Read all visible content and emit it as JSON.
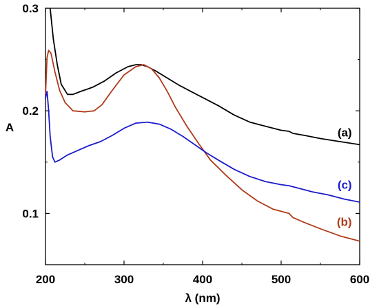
{
  "chart_data": {
    "type": "line",
    "title": "",
    "xlabel": "λ (nm)",
    "ylabel": "A",
    "xlim": [
      200,
      600
    ],
    "ylim": [
      0.05,
      0.3
    ],
    "x_ticks": [
      200,
      300,
      400,
      500,
      600
    ],
    "y_ticks": [
      0.1,
      0.2,
      0.3
    ],
    "y_tick_labels": [
      "0.1",
      "0.2",
      "0.3"
    ],
    "grid": false,
    "series": [
      {
        "name": "(a)",
        "color": "#000000",
        "points": [
          [
            206,
            0.3
          ],
          [
            210,
            0.27
          ],
          [
            215,
            0.245
          ],
          [
            220,
            0.226
          ],
          [
            228,
            0.216
          ],
          [
            235,
            0.216
          ],
          [
            245,
            0.219
          ],
          [
            260,
            0.223
          ],
          [
            275,
            0.229
          ],
          [
            290,
            0.237
          ],
          [
            305,
            0.243
          ],
          [
            315,
            0.245
          ],
          [
            322,
            0.245
          ],
          [
            330,
            0.243
          ],
          [
            340,
            0.239
          ],
          [
            355,
            0.232
          ],
          [
            370,
            0.225
          ],
          [
            385,
            0.219
          ],
          [
            400,
            0.213
          ],
          [
            420,
            0.205
          ],
          [
            440,
            0.196
          ],
          [
            460,
            0.189
          ],
          [
            480,
            0.185
          ],
          [
            500,
            0.181
          ],
          [
            510,
            0.18
          ],
          [
            515,
            0.178
          ],
          [
            530,
            0.176
          ],
          [
            550,
            0.173
          ],
          [
            575,
            0.17
          ],
          [
            600,
            0.167
          ]
        ]
      },
      {
        "name": "(b)",
        "color": "#b03a1a",
        "points": [
          [
            200,
            0.215
          ],
          [
            202,
            0.252
          ],
          [
            204,
            0.259
          ],
          [
            207,
            0.256
          ],
          [
            212,
            0.238
          ],
          [
            218,
            0.22
          ],
          [
            225,
            0.208
          ],
          [
            235,
            0.2
          ],
          [
            250,
            0.199
          ],
          [
            262,
            0.2
          ],
          [
            272,
            0.206
          ],
          [
            285,
            0.22
          ],
          [
            300,
            0.235
          ],
          [
            315,
            0.243
          ],
          [
            325,
            0.245
          ],
          [
            335,
            0.241
          ],
          [
            345,
            0.232
          ],
          [
            355,
            0.219
          ],
          [
            365,
            0.204
          ],
          [
            380,
            0.185
          ],
          [
            395,
            0.168
          ],
          [
            410,
            0.152
          ],
          [
            430,
            0.137
          ],
          [
            450,
            0.123
          ],
          [
            470,
            0.112
          ],
          [
            490,
            0.104
          ],
          [
            505,
            0.101
          ],
          [
            510,
            0.1
          ],
          [
            515,
            0.096
          ],
          [
            530,
            0.091
          ],
          [
            550,
            0.085
          ],
          [
            575,
            0.078
          ],
          [
            600,
            0.073
          ]
        ]
      },
      {
        "name": "(c)",
        "color": "#1a1acc",
        "points": [
          [
            200,
            0.212
          ],
          [
            202,
            0.219
          ],
          [
            204,
            0.2
          ],
          [
            206,
            0.175
          ],
          [
            209,
            0.155
          ],
          [
            212,
            0.15
          ],
          [
            218,
            0.152
          ],
          [
            228,
            0.157
          ],
          [
            240,
            0.161
          ],
          [
            255,
            0.166
          ],
          [
            270,
            0.17
          ],
          [
            285,
            0.176
          ],
          [
            300,
            0.183
          ],
          [
            315,
            0.188
          ],
          [
            330,
            0.189
          ],
          [
            345,
            0.187
          ],
          [
            360,
            0.182
          ],
          [
            375,
            0.175
          ],
          [
            390,
            0.167
          ],
          [
            405,
            0.159
          ],
          [
            420,
            0.152
          ],
          [
            440,
            0.143
          ],
          [
            460,
            0.136
          ],
          [
            480,
            0.131
          ],
          [
            500,
            0.128
          ],
          [
            510,
            0.127
          ],
          [
            520,
            0.125
          ],
          [
            540,
            0.121
          ],
          [
            560,
            0.118
          ],
          [
            580,
            0.114
          ],
          [
            600,
            0.111
          ]
        ]
      }
    ],
    "series_label_positions": {
      "(a)": [
        590,
        0.175
      ],
      "(b)": [
        590,
        0.088
      ],
      "(c)": [
        590,
        0.124
      ]
    }
  }
}
